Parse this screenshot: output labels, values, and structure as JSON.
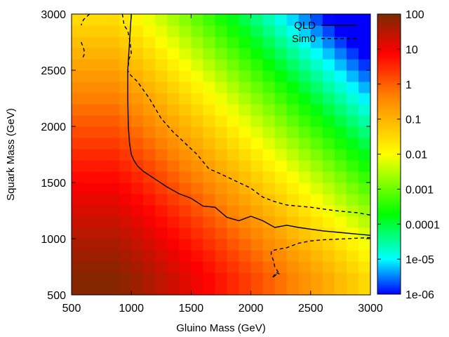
{
  "chart_data": {
    "type": "heatmap",
    "title": "",
    "xlabel": "Gluino Mass (GeV)",
    "ylabel": "Squark Mass (GeV)",
    "xlim": [
      500,
      3000
    ],
    "ylim": [
      500,
      3000
    ],
    "x_ticks": [
      "500",
      "1000",
      "1500",
      "2000",
      "2500",
      "3000"
    ],
    "y_ticks": [
      "500",
      "1000",
      "1500",
      "2000",
      "2500",
      "3000"
    ],
    "colorbar": {
      "scale": "log",
      "range": [
        1e-06,
        100
      ],
      "tick_labels": [
        "100",
        "10",
        "1",
        "0.1",
        "0.01",
        "0.001",
        "0.0001",
        "1e-05",
        "1e-06"
      ],
      "stops": [
        "#0000ff",
        "#00ffff",
        "#00ff00",
        "#ffff00",
        "#ff8000",
        "#ff0000",
        "#7a2a00"
      ]
    },
    "grid": {
      "x_start": 550,
      "x_step": 100,
      "nx": 25,
      "y_start": 550,
      "y_step": 100,
      "ny": 25
    },
    "series": [
      {
        "name": "QLD",
        "style": "solid",
        "x": [
          1000,
          985,
          970,
          970,
          975,
          985,
          1000,
          1020,
          1050,
          1100,
          1200,
          1300,
          1400,
          1500,
          1600,
          1700,
          1800,
          1900,
          1950,
          2000,
          2100,
          2200,
          2300,
          2400,
          2600,
          2800,
          3000
        ],
        "y": [
          3000,
          2750,
          2500,
          2250,
          2000,
          1850,
          1750,
          1700,
          1650,
          1600,
          1530,
          1460,
          1400,
          1360,
          1290,
          1280,
          1190,
          1160,
          1180,
          1200,
          1160,
          1100,
          1120,
          1100,
          1070,
          1050,
          1030
        ]
      },
      {
        "name": "Sim0",
        "style": "dashed",
        "segments": [
          {
            "x": [
              925,
              940,
              970,
              990,
              1000,
              980,
              970,
              980,
              1050,
              1150,
              1250,
              1350,
              1450,
              1550,
              1650,
              1700,
              1800,
              1900,
              2000,
              2100,
              2200,
              2300,
              2500,
              2700,
              2900,
              3000
            ],
            "y": [
              3000,
              2900,
              2850,
              2750,
              2650,
              2600,
              2500,
              2470,
              2400,
              2250,
              2070,
              1950,
              1850,
              1750,
              1620,
              1600,
              1550,
              1500,
              1450,
              1370,
              1330,
              1300,
              1280,
              1250,
              1230,
              1210
            ]
          },
          {
            "x": [
              650,
              600,
              580
            ],
            "y": [
              3000,
              2950,
              2900
            ]
          },
          {
            "x": [
              580,
              600,
              610,
              590
            ],
            "y": [
              2750,
              2700,
              2650,
              2600
            ]
          },
          {
            "x": [
              3000,
              2800,
              2600,
              2500,
              2400,
              2300,
              2250,
              2200,
              2170,
              2170,
              2190,
              2200,
              2230,
              2180,
              2210,
              2250
            ],
            "y": [
              1010,
              1000,
              990,
              980,
              960,
              920,
              910,
              900,
              890,
              860,
              800,
              750,
              700,
              650,
              700,
              680
            ]
          }
        ]
      }
    ],
    "legend": {
      "placement": "top-right",
      "entries": [
        "QLD",
        "Sim0"
      ]
    }
  }
}
